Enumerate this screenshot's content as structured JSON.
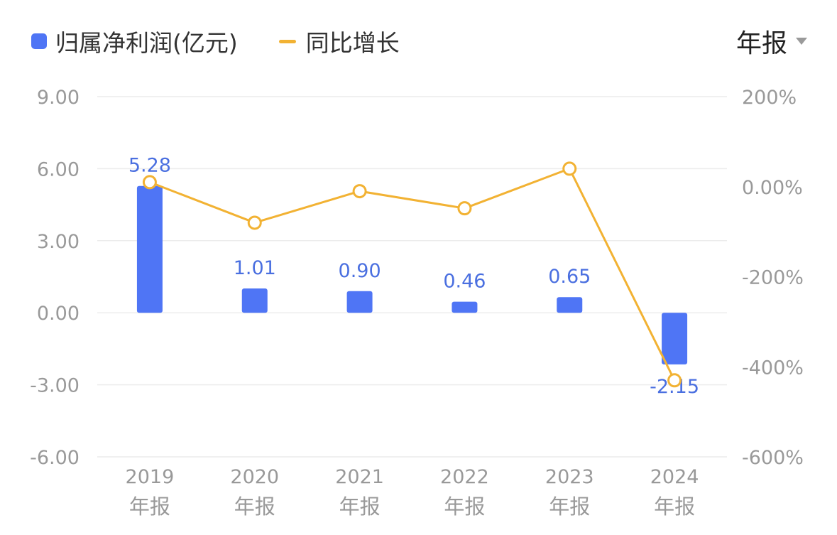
{
  "legend": {
    "bar_label": "归属净利润(亿元)",
    "line_label": "同比增长"
  },
  "period_selector": {
    "value": "年报"
  },
  "colors": {
    "bar": "#4f75f5",
    "line": "#f2b233",
    "label": "#4a6fe0",
    "axis_text": "#999999",
    "grid": "#ececec"
  },
  "chart_data": {
    "type": "bar+line",
    "categories": [
      "2019\n年报",
      "2020\n年报",
      "2021\n年报",
      "2022\n年报",
      "2023\n年报",
      "2024\n年报"
    ],
    "category_years": [
      "2019",
      "2020",
      "2021",
      "2022",
      "2023",
      "2024"
    ],
    "category_suffix": "年报",
    "series": [
      {
        "name": "归属净利润(亿元)",
        "type": "bar",
        "axis": "left",
        "values": [
          5.28,
          1.01,
          0.9,
          0.46,
          0.65,
          -2.15
        ],
        "labels": [
          "5.28",
          "1.01",
          "0.90",
          "0.46",
          "0.65",
          "-2.15"
        ]
      },
      {
        "name": "同比增长",
        "type": "line",
        "axis": "right",
        "values": [
          10,
          -80,
          -10,
          -48,
          40,
          -430
        ]
      }
    ],
    "y_left": {
      "min": -6,
      "max": 9,
      "ticks": [
        9,
        6,
        3,
        0,
        -3,
        -6
      ],
      "tick_labels": [
        "9.00",
        "6.00",
        "3.00",
        "0.00",
        "-3.00",
        "-6.00"
      ]
    },
    "y_right": {
      "min": -600,
      "max": 200,
      "ticks": [
        200,
        0,
        -200,
        -400,
        -600
      ],
      "tick_labels": [
        "200%",
        "0.00%",
        "-200%",
        "-400%",
        "-600%"
      ]
    },
    "grid": true,
    "legend_position": "top-left"
  }
}
